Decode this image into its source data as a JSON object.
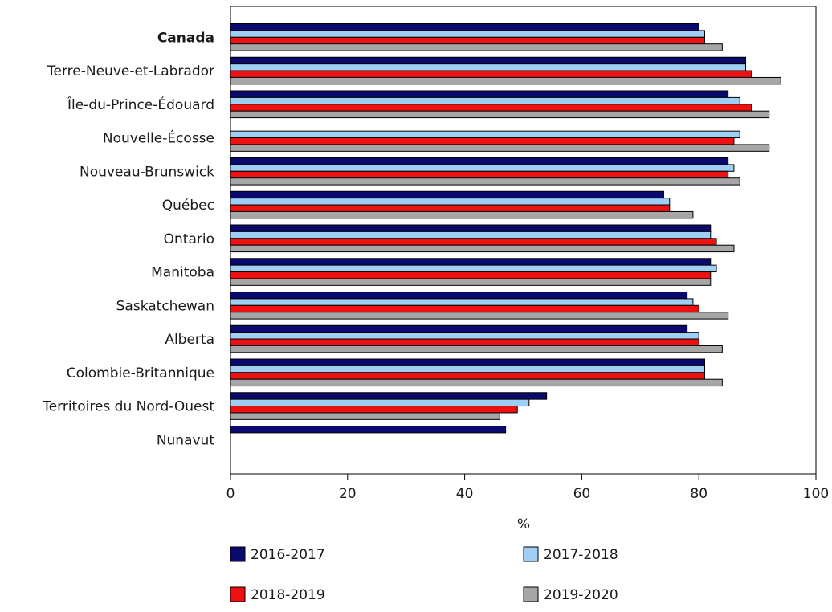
{
  "chart_data": {
    "type": "bar",
    "orientation": "horizontal",
    "categories": [
      "Canada",
      "Terre-Neuve-et-Labrador",
      "Île-du-Prince-Édouard",
      "Nouvelle-Écosse",
      "Nouveau-Brunswick",
      "Québec",
      "Ontario",
      "Manitoba",
      "Saskatchewan",
      "Alberta",
      "Colombie-Britannique",
      "Territoires du Nord-Ouest",
      "Nunavut"
    ],
    "bold_categories": [
      "Canada"
    ],
    "series": [
      {
        "name": "2016-2017",
        "color": "#0a0a6e",
        "values": [
          80,
          88,
          85,
          null,
          85,
          74,
          82,
          82,
          78,
          78,
          81,
          54,
          47
        ]
      },
      {
        "name": "2017-2018",
        "color": "#9fcff5",
        "values": [
          81,
          88,
          87,
          87,
          86,
          75,
          82,
          83,
          79,
          80,
          81,
          51,
          null
        ]
      },
      {
        "name": "2018-2019",
        "color": "#ee1111",
        "values": [
          81,
          89,
          89,
          86,
          85,
          75,
          83,
          82,
          80,
          80,
          81,
          49,
          null
        ]
      },
      {
        "name": "2019-2020",
        "color": "#a6a6a6",
        "values": [
          84,
          94,
          92,
          92,
          87,
          79,
          86,
          82,
          85,
          84,
          84,
          46,
          null
        ]
      }
    ],
    "xlabel": "%",
    "ylabel": "",
    "xlim": [
      0,
      100
    ],
    "xticks": [
      0,
      20,
      40,
      60,
      80,
      100
    ],
    "grid": false,
    "legend_position": "bottom"
  }
}
